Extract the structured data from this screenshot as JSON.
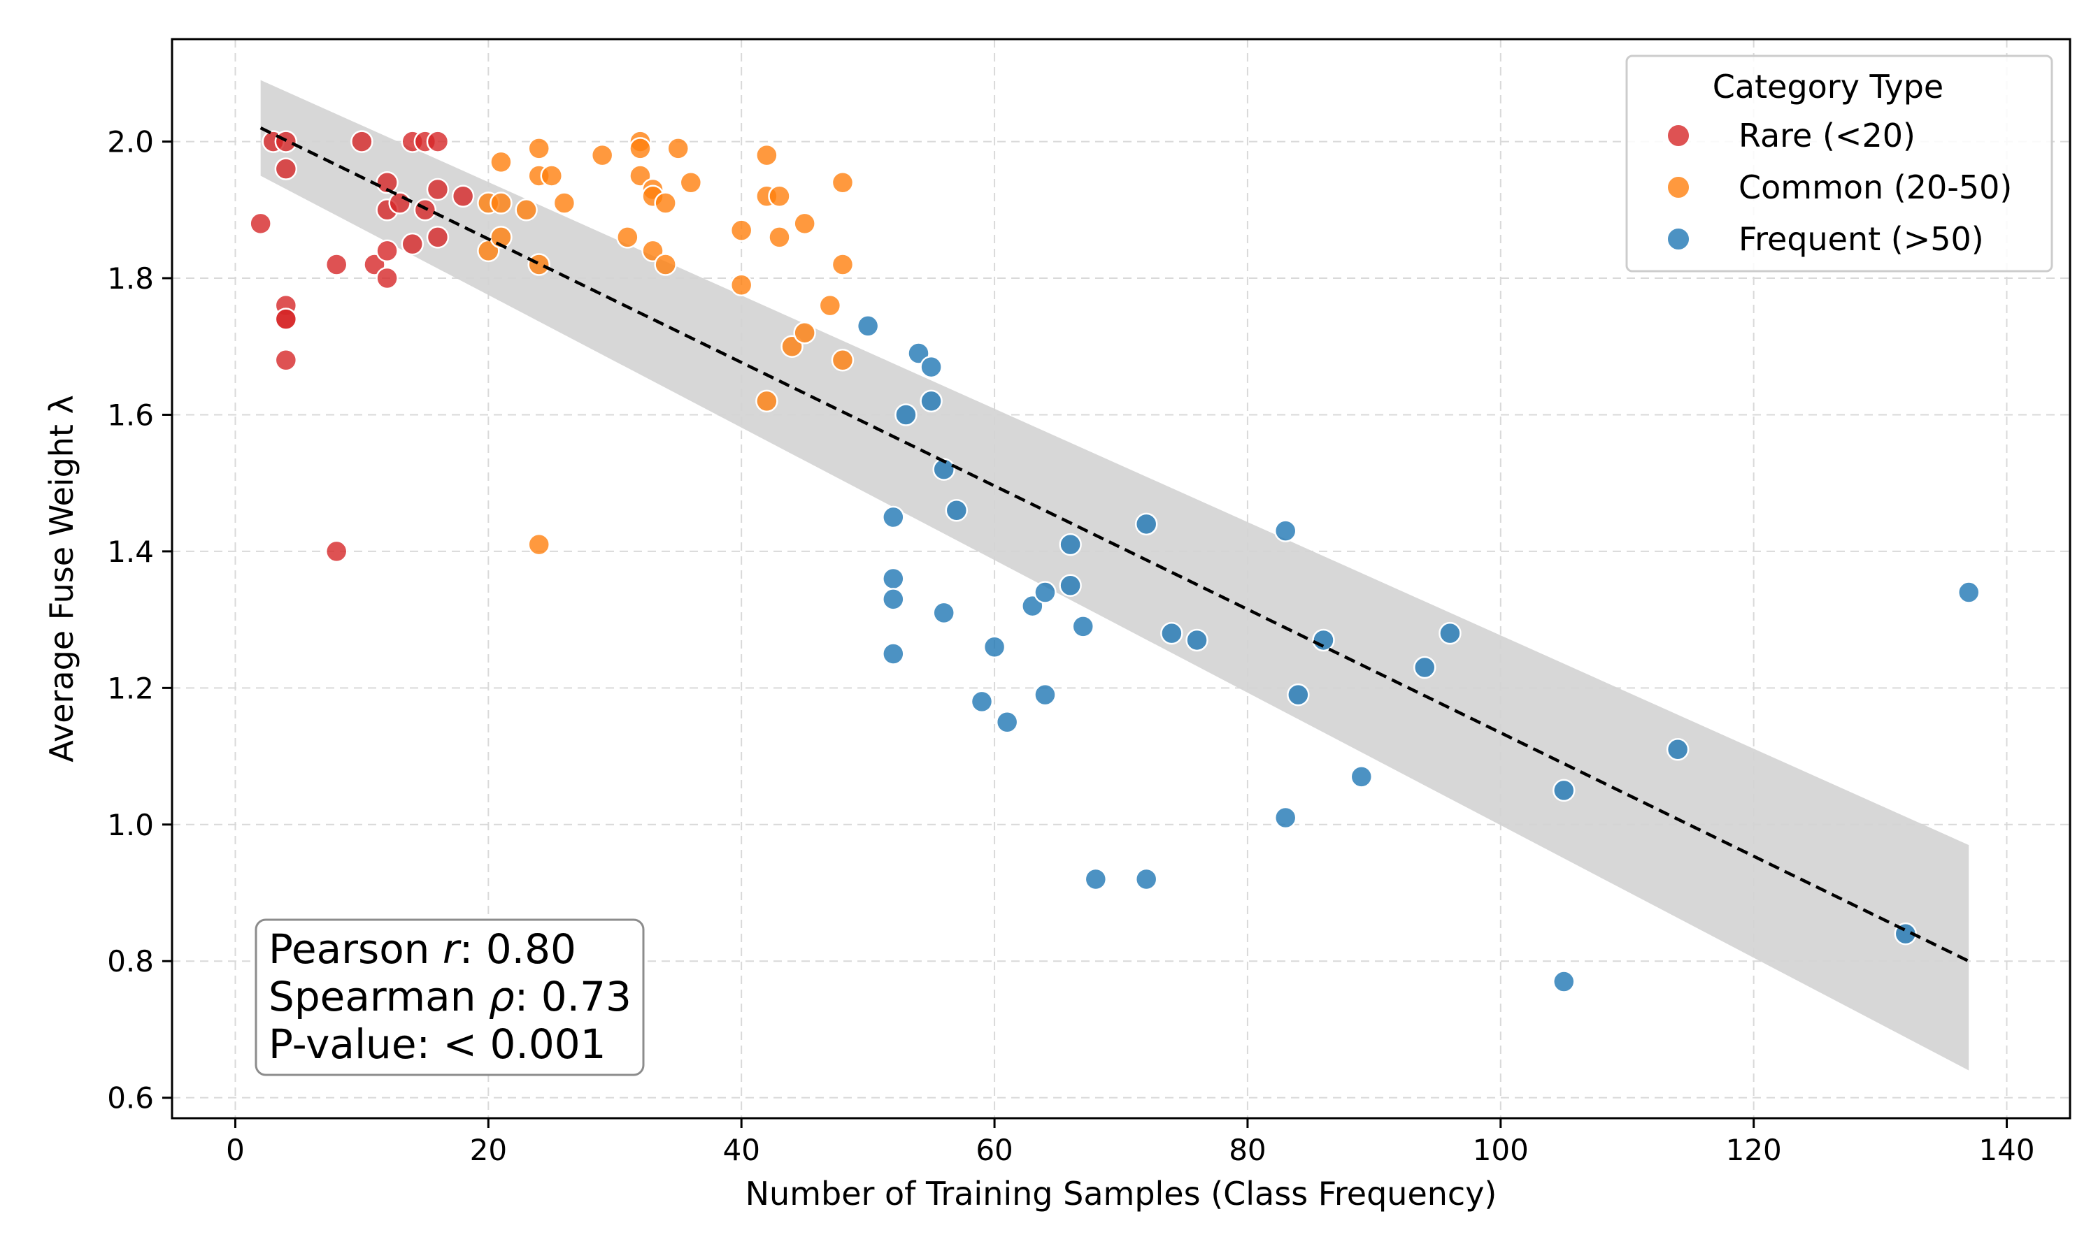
{
  "chart_data": {
    "type": "scatter",
    "title": "",
    "xlabel": "Number of Training Samples (Class Frequency)",
    "ylabel": "Average Fuse Weight λ",
    "xlim": [
      -5,
      145
    ],
    "ylim": [
      0.57,
      2.15
    ],
    "xticks": [
      0,
      20,
      40,
      60,
      80,
      100,
      120,
      140
    ],
    "yticks": [
      0.6,
      0.8,
      1.0,
      1.2,
      1.4,
      1.6,
      1.8,
      2.0
    ],
    "xtick_labels": [
      "0",
      "20",
      "40",
      "60",
      "80",
      "100",
      "120",
      "140"
    ],
    "ytick_labels": [
      "0.6",
      "0.8",
      "1.0",
      "1.2",
      "1.4",
      "1.6",
      "1.8",
      "2.0"
    ],
    "grid": true,
    "legend": {
      "title": "Category Type",
      "position": "top-right"
    },
    "series": [
      {
        "name": "Rare (<20)",
        "color": "#d62728",
        "x": [
          2,
          3,
          4,
          4,
          4,
          4,
          4,
          4,
          8,
          8,
          10,
          11,
          12,
          12,
          12,
          12,
          13,
          14,
          14,
          15,
          15,
          16,
          16,
          16,
          18
        ],
        "y": [
          1.88,
          2.0,
          2.0,
          1.96,
          1.76,
          1.74,
          1.74,
          1.68,
          1.82,
          1.4,
          2.0,
          1.82,
          1.94,
          1.9,
          1.84,
          1.8,
          1.91,
          2.0,
          1.85,
          2.0,
          1.9,
          2.0,
          1.93,
          1.86,
          1.92
        ]
      },
      {
        "name": "Common (20-50)",
        "color": "#ff7f0e",
        "x": [
          20,
          20,
          21,
          21,
          21,
          23,
          24,
          24,
          24,
          24,
          25,
          26,
          29,
          31,
          32,
          32,
          32,
          33,
          33,
          33,
          34,
          34,
          35,
          36,
          40,
          40,
          42,
          42,
          42,
          43,
          43,
          44,
          45,
          45,
          47,
          48,
          48,
          48
        ],
        "y": [
          1.91,
          1.84,
          1.97,
          1.91,
          1.86,
          1.9,
          1.99,
          1.95,
          1.82,
          1.41,
          1.95,
          1.91,
          1.98,
          1.86,
          2.0,
          1.95,
          1.99,
          1.93,
          1.92,
          1.84,
          1.91,
          1.82,
          1.99,
          1.94,
          1.87,
          1.79,
          1.98,
          1.92,
          1.62,
          1.92,
          1.86,
          1.7,
          1.88,
          1.72,
          1.76,
          1.94,
          1.82,
          1.68
        ]
      },
      {
        "name": "Frequent (>50)",
        "color": "#1f77b4",
        "x": [
          50,
          52,
          52,
          52,
          52,
          53,
          54,
          55,
          55,
          56,
          56,
          57,
          59,
          60,
          61,
          63,
          64,
          64,
          66,
          66,
          67,
          68,
          72,
          72,
          74,
          76,
          83,
          83,
          84,
          86,
          89,
          94,
          96,
          105,
          105,
          114,
          132,
          137
        ],
        "y": [
          1.73,
          1.45,
          1.36,
          1.33,
          1.25,
          1.6,
          1.69,
          1.67,
          1.62,
          1.52,
          1.31,
          1.46,
          1.18,
          1.26,
          1.15,
          1.32,
          1.34,
          1.19,
          1.41,
          1.35,
          1.29,
          0.92,
          1.44,
          0.92,
          1.28,
          1.27,
          1.43,
          1.01,
          1.19,
          1.27,
          1.07,
          1.23,
          1.28,
          1.05,
          0.77,
          1.11,
          0.84,
          1.34
        ]
      }
    ],
    "regression": {
      "x": [
        2,
        137
      ],
      "y": [
        2.02,
        0.8
      ],
      "ci_upper": [
        2.09,
        0.97
      ],
      "ci_lower": [
        1.95,
        0.64
      ],
      "color": "#000000",
      "style": "dashed",
      "band_color": "#d3d3d3"
    },
    "annotation": {
      "lines": [
        {
          "label": "Pearson ",
          "symbol": "r",
          "value": ": 0.80"
        },
        {
          "label": "Spearman ",
          "symbol": "ρ",
          "value": ": 0.73"
        },
        {
          "label": "P-value: ",
          "symbol": "",
          "value": "< 0.001"
        }
      ],
      "position": "bottom-left"
    }
  }
}
